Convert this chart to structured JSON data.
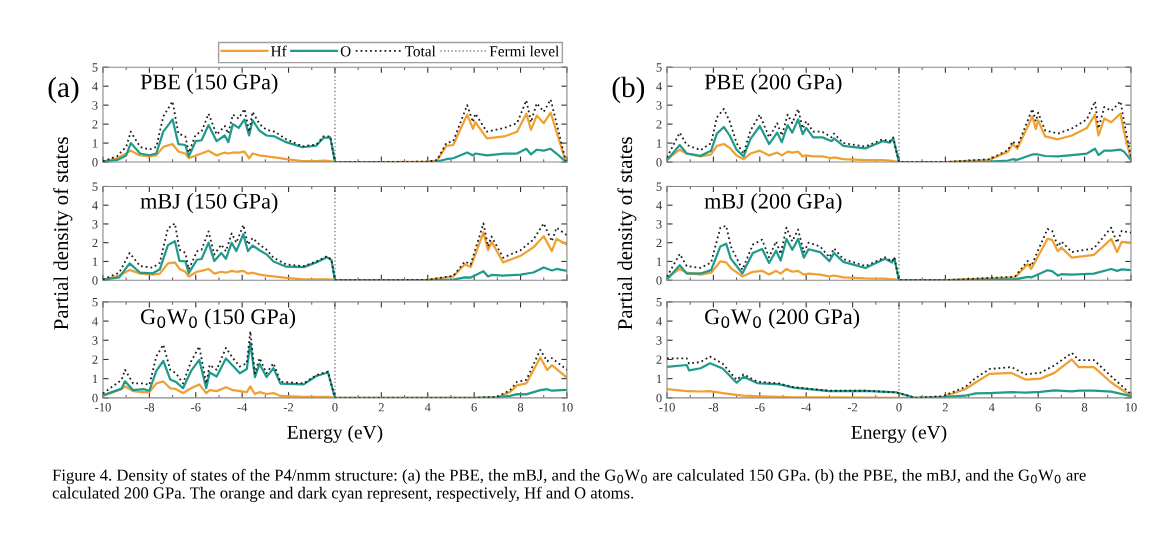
{
  "chart_data": [
    {
      "type": "line",
      "title": "PBE (150 GPa)",
      "xlim": [
        -10,
        10
      ],
      "ylim": [
        0,
        5
      ],
      "xticks": [
        -10,
        -8,
        -6,
        -4,
        -2,
        0,
        2,
        4,
        6,
        8,
        10
      ],
      "yticks": [
        0,
        1,
        2,
        3,
        4,
        5
      ],
      "tick_labels": "y",
      "legend": "top right",
      "annotations": [
        "(a)",
        "Figure 4. Density of states of the P4/nmm structure: (a) the PBE, the mBJ, and the G$_{0}$W$_{0}$ are calculated 150 GPa. (b) the PBE, the mBJ, and the G$_{0}$W$_{0}$ are calculated 200 GPa. The orange and dark cyan represent, respectively, Hf and O atoms."
      ],
      "ref_lines": [
        {
          "axis": "x",
          "value": 0,
          "label": "Fermi level",
          "color": "#808080",
          "line_style": "dotted"
        }
      ],
      "x": [
        -10,
        -9.4,
        -9,
        -8.8,
        -8.4,
        -8,
        -7.7,
        -7.4,
        -7,
        -6.75,
        -6.45,
        -6.3,
        -6,
        -5.75,
        -5.45,
        -5.1,
        -4.75,
        -4.6,
        -4.4,
        -4.15,
        -3.9,
        -3.7,
        -3.55,
        -3.25,
        -2.95,
        -2.6,
        -2.1,
        -1.4,
        -0.8,
        -0.5,
        -0.2,
        0,
        2,
        4,
        4.4,
        4.8,
        5.1,
        5.7,
        5.95,
        6.05,
        6.55,
        7.3,
        7.85,
        8.25,
        8.45,
        8.7,
        9,
        9.3,
        9.55,
        9.95
      ],
      "series": [
        {
          "name": "Hf",
          "color": "#f0a030",
          "values": [
            0.02,
            0.2,
            0.45,
            0.6,
            0.35,
            0.3,
            0.35,
            0.8,
            0.95,
            0.55,
            0.45,
            0.2,
            0.35,
            0.45,
            0.6,
            0.35,
            0.5,
            0.45,
            0.5,
            0.5,
            0.55,
            0.2,
            0.45,
            0.35,
            0.3,
            0.25,
            0.15,
            0.05,
            0.05,
            0.08,
            0.05,
            0,
            0,
            0.02,
            0.08,
            0.85,
            0.9,
            2.5,
            1.75,
            2.1,
            1.25,
            1.35,
            1.6,
            2.55,
            1.7,
            2.45,
            2.05,
            2.6,
            1.6,
            0.03
          ]
        },
        {
          "name": "O",
          "color": "#1f9a8c",
          "values": [
            0.03,
            0.1,
            0.35,
            1.0,
            0.45,
            0.36,
            0.45,
            1.6,
            2.25,
            0.95,
            0.9,
            0.3,
            1.1,
            1.15,
            1.95,
            1.1,
            1.4,
            1.05,
            2.0,
            1.8,
            2.25,
            1.4,
            2.2,
            1.65,
            1.4,
            1.35,
            1.05,
            0.78,
            0.87,
            1.27,
            1.3,
            0,
            0,
            0,
            0.02,
            0.15,
            0.2,
            0.5,
            0.35,
            0.45,
            0.35,
            0.45,
            0.45,
            0.7,
            0.4,
            0.65,
            0.6,
            0.7,
            0.45,
            0.02
          ]
        },
        {
          "name": "Total",
          "color": "#202020",
          "line_style": "dotted",
          "values": [
            0.05,
            0.3,
            0.8,
            1.6,
            0.8,
            0.66,
            0.8,
            2.4,
            3.2,
            1.5,
            1.35,
            0.5,
            1.45,
            1.6,
            2.55,
            1.45,
            1.9,
            1.5,
            2.5,
            2.3,
            2.8,
            1.6,
            2.65,
            2.0,
            1.7,
            1.6,
            1.2,
            0.83,
            0.92,
            1.35,
            1.35,
            0,
            0,
            0.02,
            0.1,
            1.0,
            1.1,
            3.0,
            2.1,
            2.55,
            1.6,
            1.8,
            2.05,
            3.25,
            2.1,
            3.1,
            2.65,
            3.3,
            2.05,
            0.05
          ]
        }
      ]
    },
    {
      "type": "line",
      "title": "PBE (200 GPa)",
      "xlim": [
        -10,
        10
      ],
      "ylim": [
        0,
        5
      ],
      "xticks": [
        -10,
        -8,
        -6,
        -4,
        -2,
        0,
        2,
        4,
        6,
        8,
        10
      ],
      "yticks": [
        0,
        1,
        2,
        3,
        4,
        5
      ],
      "tick_labels": "y",
      "annotations": [
        "(b)"
      ],
      "ref_lines": [
        {
          "axis": "x",
          "value": 0,
          "color": "#808080",
          "line_style": "dotted"
        }
      ],
      "x": [
        -10,
        -9.45,
        -9.15,
        -8.55,
        -8.1,
        -7.85,
        -7.55,
        -7.3,
        -7,
        -6.7,
        -6.4,
        -6,
        -5.6,
        -5.25,
        -5.05,
        -4.8,
        -4.6,
        -4.35,
        -4.15,
        -4,
        -3.7,
        -3.3,
        -2.9,
        -2.8,
        -2.4,
        -1.45,
        -0.7,
        -0.4,
        -0.25,
        0,
        2,
        3.9,
        4.7,
        4.9,
        5.1,
        5.75,
        5.9,
        6,
        6.3,
        6.85,
        7.45,
        8.1,
        8.45,
        8.6,
        8.85,
        9.15,
        9.55,
        9.7,
        10
      ],
      "series": [
        {
          "color": "#f0a030",
          "values": [
            0.15,
            0.65,
            0.45,
            0.3,
            0.4,
            0.85,
            0.95,
            0.75,
            0.35,
            0.15,
            0.45,
            0.6,
            0.35,
            0.5,
            0.35,
            0.55,
            0.5,
            0.55,
            0.3,
            0.35,
            0.3,
            0.3,
            0.2,
            0.25,
            0.15,
            0.1,
            0.1,
            0.08,
            0.05,
            0,
            0,
            0.12,
            0.55,
            0.95,
            0.7,
            2.4,
            1.75,
            2.2,
            1.35,
            1.2,
            1.4,
            1.8,
            2.5,
            1.4,
            2.3,
            2.1,
            2.55,
            1.6,
            0.15
          ]
        },
        {
          "color": "#1f9a8c",
          "values": [
            0.1,
            0.9,
            0.45,
            0.33,
            0.6,
            1.5,
            1.85,
            1.4,
            0.65,
            0.29,
            1.22,
            1.9,
            0.95,
            1.55,
            1.05,
            1.95,
            1.55,
            2.25,
            1.47,
            1.8,
            1.3,
            1.3,
            1.1,
            1.25,
            0.85,
            0.72,
            1.1,
            1.02,
            1.25,
            0,
            0,
            0.03,
            0.08,
            0.15,
            0.12,
            0.4,
            0.4,
            0.4,
            0.32,
            0.3,
            0.37,
            0.45,
            0.7,
            0.37,
            0.6,
            0.6,
            0.65,
            0.55,
            0.1
          ]
        },
        {
          "color": "#202020",
          "line_style": "dotted",
          "values": [
            0.25,
            1.55,
            0.9,
            0.63,
            1.0,
            2.35,
            2.8,
            2.15,
            1.0,
            0.44,
            1.67,
            2.5,
            1.3,
            2.05,
            1.4,
            2.5,
            2.05,
            2.8,
            1.77,
            2.15,
            1.6,
            1.6,
            1.3,
            1.5,
            1.0,
            0.82,
            1.2,
            1.1,
            1.3,
            0,
            0,
            0.15,
            0.63,
            1.1,
            0.82,
            2.8,
            2.15,
            2.6,
            1.67,
            1.5,
            1.77,
            2.25,
            3.2,
            1.77,
            2.9,
            2.7,
            3.2,
            2.15,
            0.25
          ]
        }
      ]
    },
    {
      "type": "line",
      "title": "mBJ (150 GPa)",
      "ylabel": "Partial density of states",
      "xlim": [
        -10,
        10
      ],
      "ylim": [
        0,
        5
      ],
      "xticks": [
        -10,
        -8,
        -6,
        -4,
        -2,
        0,
        2,
        4,
        6,
        8,
        10
      ],
      "yticks": [
        0,
        1,
        2,
        3,
        4,
        5
      ],
      "tick_labels": "y",
      "ref_lines": [
        {
          "axis": "x",
          "value": 0,
          "color": "#808080",
          "line_style": "dotted"
        }
      ],
      "x": [
        -10,
        -9.3,
        -8.85,
        -8.4,
        -7.85,
        -7.55,
        -7.2,
        -6.9,
        -6.7,
        -6.45,
        -6.3,
        -5.95,
        -5.75,
        -5.45,
        -5.2,
        -4.9,
        -4.7,
        -4.45,
        -4.25,
        -3.95,
        -3.75,
        -3.55,
        -3.25,
        -2.95,
        -2.65,
        -2.1,
        -1.35,
        -0.8,
        -0.35,
        -0.15,
        0,
        2,
        4,
        5.1,
        5.6,
        5.85,
        6.4,
        6.6,
        6.75,
        7.25,
        8,
        8.55,
        9,
        9.35,
        9.55,
        10
      ],
      "series": [
        {
          "color": "#f0a030",
          "values": [
            0.02,
            0.25,
            0.55,
            0.35,
            0.3,
            0.35,
            0.9,
            0.95,
            0.6,
            0.45,
            0.2,
            0.45,
            0.5,
            0.6,
            0.35,
            0.45,
            0.4,
            0.5,
            0.45,
            0.5,
            0.35,
            0.4,
            0.3,
            0.25,
            0.2,
            0.12,
            0.05,
            0.05,
            0.05,
            0.03,
            0,
            0,
            0.02,
            0.2,
            0.85,
            0.7,
            2.55,
            1.6,
            2.05,
            0.95,
            1.3,
            1.75,
            2.35,
            1.55,
            2.2,
            1.9
          ]
        },
        {
          "color": "#1f9a8c",
          "values": [
            0.03,
            0.15,
            0.9,
            0.4,
            0.37,
            0.58,
            1.87,
            2.08,
            1.03,
            1.01,
            0.38,
            1.09,
            1.13,
            2.0,
            1.02,
            1.45,
            1.14,
            2.0,
            1.55,
            2.45,
            1.55,
            1.85,
            1.6,
            1.38,
            1.0,
            0.72,
            0.7,
            0.95,
            1.23,
            1.07,
            0,
            0,
            0,
            0.03,
            0.15,
            0.14,
            0.48,
            0.2,
            0.28,
            0.25,
            0.3,
            0.41,
            0.68,
            0.52,
            0.6,
            0.5
          ]
        },
        {
          "color": "#202020",
          "line_style": "dotted",
          "values": [
            0.05,
            0.4,
            1.45,
            0.75,
            0.67,
            0.93,
            2.77,
            3.03,
            1.63,
            1.46,
            0.58,
            1.54,
            1.63,
            2.6,
            1.37,
            1.9,
            1.54,
            2.5,
            2.0,
            2.95,
            1.9,
            2.25,
            1.9,
            1.63,
            1.2,
            0.84,
            0.75,
            1.0,
            1.28,
            1.1,
            0,
            0,
            0.02,
            0.23,
            1.0,
            0.84,
            3.03,
            1.8,
            2.33,
            1.2,
            1.6,
            2.16,
            3.03,
            2.07,
            2.8,
            2.4
          ]
        }
      ]
    },
    {
      "type": "line",
      "title": "mBJ (200 GPa)",
      "ylabel": "Partial density of states",
      "xlim": [
        -10,
        10
      ],
      "ylim": [
        0,
        5
      ],
      "xticks": [
        -10,
        -8,
        -6,
        -4,
        -2,
        0,
        2,
        4,
        6,
        8,
        10
      ],
      "yticks": [
        0,
        1,
        2,
        3,
        4,
        5
      ],
      "tick_labels": "y",
      "ref_lines": [
        {
          "axis": "x",
          "value": 0,
          "color": "#808080",
          "line_style": "dotted"
        }
      ],
      "x": [
        -10,
        -9.45,
        -9.15,
        -8.55,
        -8.1,
        -7.7,
        -7.45,
        -7.25,
        -6.75,
        -6.3,
        -5.9,
        -5.6,
        -5.3,
        -5.1,
        -4.85,
        -4.6,
        -4.35,
        -4.1,
        -3.9,
        -3.4,
        -3,
        -2.8,
        -2.4,
        -1.45,
        -0.6,
        -0.3,
        -0.2,
        0,
        2,
        5,
        5.55,
        5.7,
        6.4,
        6.6,
        6.85,
        7,
        7.45,
        8.4,
        9.15,
        9.4,
        9.6,
        10
      ],
      "series": [
        {
          "color": "#f0a030",
          "values": [
            0.15,
            0.6,
            0.4,
            0.3,
            0.4,
            1.0,
            0.95,
            0.65,
            0.2,
            0.45,
            0.5,
            0.3,
            0.5,
            0.35,
            0.6,
            0.45,
            0.5,
            0.3,
            0.35,
            0.3,
            0.2,
            0.25,
            0.15,
            0.1,
            0.08,
            0.05,
            0.05,
            0,
            0,
            0.15,
            0.85,
            0.6,
            2.2,
            2.15,
            1.55,
            1.75,
            1.2,
            1.35,
            2.2,
            1.5,
            2.05,
            2.0
          ]
        },
        {
          "color": "#1f9a8c",
          "values": [
            0.04,
            0.8,
            0.35,
            0.36,
            0.54,
            1.8,
            1.95,
            1.15,
            0.36,
            1.45,
            1.66,
            0.92,
            1.57,
            1.05,
            2.2,
            1.62,
            2.2,
            1.2,
            1.65,
            1.5,
            1.02,
            1.45,
            0.98,
            0.65,
            1.14,
            0.95,
            1.17,
            0,
            0,
            0.04,
            0.18,
            0.15,
            0.53,
            0.48,
            0.25,
            0.32,
            0.3,
            0.35,
            0.6,
            0.5,
            0.58,
            0.54
          ]
        },
        {
          "color": "#202020",
          "line_style": "dotted",
          "values": [
            0.19,
            1.4,
            0.75,
            0.66,
            0.94,
            2.8,
            2.9,
            1.8,
            0.56,
            1.9,
            2.16,
            1.22,
            2.07,
            1.4,
            2.8,
            2.07,
            2.7,
            1.5,
            2.0,
            1.8,
            1.22,
            1.7,
            1.13,
            0.75,
            1.22,
            1.0,
            1.22,
            0,
            0,
            0.19,
            1.03,
            0.75,
            2.73,
            2.63,
            1.8,
            2.07,
            1.5,
            1.7,
            2.8,
            2.0,
            2.63,
            2.54
          ]
        }
      ]
    },
    {
      "type": "line",
      "title": "G$_{0}$W$_{0}$ (150 GPa)",
      "xlabel": "Energy (eV)",
      "xlim": [
        -10,
        10
      ],
      "ylim": [
        0,
        5
      ],
      "xticks": [
        -10,
        -8,
        -6,
        -4,
        -2,
        0,
        2,
        4,
        6,
        8,
        10
      ],
      "yticks": [
        0,
        1,
        2,
        3,
        4,
        5
      ],
      "ref_lines": [
        {
          "axis": "x",
          "value": 0,
          "color": "#808080",
          "line_style": "dotted"
        }
      ],
      "x": [
        -10,
        -9.2,
        -9.05,
        -8.7,
        -8.25,
        -8,
        -7.7,
        -7.4,
        -7.1,
        -6.85,
        -6.55,
        -6.2,
        -5.85,
        -5.55,
        -5.4,
        -5.1,
        -4.7,
        -4.4,
        -4.1,
        -3.8,
        -3.65,
        -3.45,
        -3.25,
        -2.95,
        -2.65,
        -2.35,
        -1.35,
        -0.8,
        -0.3,
        0,
        2,
        4,
        6,
        7,
        7.55,
        7.85,
        8.25,
        8.85,
        9.15,
        9.35,
        10
      ],
      "series": [
        {
          "color": "#f0a030",
          "values": [
            0.1,
            0.45,
            0.6,
            0.35,
            0.3,
            0.3,
            0.75,
            0.85,
            0.5,
            0.45,
            0.25,
            0.5,
            0.7,
            0.25,
            0.4,
            0.35,
            0.55,
            0.4,
            0.35,
            0.3,
            0.6,
            0.2,
            0.3,
            0.2,
            0.25,
            0.1,
            0.05,
            0.05,
            0.05,
            0,
            0,
            0,
            0,
            0.03,
            0.3,
            0.65,
            0.75,
            2.1,
            1.45,
            1.7,
            1.05
          ]
        },
        {
          "color": "#1f9a8c",
          "values": [
            0.13,
            0.48,
            0.86,
            0.4,
            0.45,
            0.37,
            1.41,
            1.92,
            0.96,
            0.83,
            0.5,
            1.4,
            1.98,
            0.5,
            1.32,
            1.11,
            2.05,
            1.67,
            1.28,
            1.5,
            2.87,
            1.08,
            1.77,
            1.08,
            1.55,
            0.74,
            0.7,
            1.14,
            1.32,
            0,
            0,
            0,
            0,
            0.02,
            0.1,
            0.19,
            0.18,
            0.4,
            0.45,
            0.37,
            0.41
          ]
        },
        {
          "color": "#202020",
          "line_style": "dotted",
          "values": [
            0.23,
            0.93,
            1.46,
            0.75,
            0.75,
            0.67,
            2.16,
            2.77,
            1.46,
            1.28,
            0.75,
            1.9,
            2.68,
            0.75,
            1.72,
            1.46,
            2.6,
            2.07,
            1.63,
            1.8,
            3.47,
            1.28,
            2.07,
            1.28,
            1.8,
            0.84,
            0.75,
            1.19,
            1.37,
            0,
            0,
            0,
            0,
            0.05,
            0.4,
            0.84,
            0.93,
            2.5,
            1.9,
            2.07,
            1.46
          ]
        }
      ]
    },
    {
      "type": "line",
      "title": "G$_{0}$W$_{0}$ (200 GPa)",
      "xlabel": "Energy (eV)",
      "xlim": [
        -10,
        10
      ],
      "ylim": [
        0,
        5
      ],
      "xticks": [
        -10,
        -8,
        -6,
        -4,
        -2,
        0,
        2,
        4,
        6,
        8,
        10
      ],
      "yticks": [
        0,
        1,
        2,
        3,
        4,
        5
      ],
      "ref_lines": [
        {
          "axis": "x",
          "value": 0,
          "color": "#808080",
          "line_style": "dotted"
        }
      ],
      "x": [
        -10,
        -9.15,
        -9.05,
        -8.55,
        -8.15,
        -7.6,
        -7,
        -6.7,
        -6.4,
        -6.1,
        -5.15,
        -4.55,
        -3,
        -1.45,
        -0.1,
        0.7,
        1.9,
        2.85,
        3.3,
        3.9,
        4.85,
        5.45,
        6.1,
        6.7,
        7.45,
        7.75,
        8.4,
        9.15,
        10
      ],
      "series": [
        {
          "color": "#f0a030",
          "values": [
            0.45,
            0.35,
            0.35,
            0.33,
            0.35,
            0.25,
            0.15,
            0.12,
            0.1,
            0.08,
            0.05,
            0.03,
            0.02,
            0.01,
            0,
            0,
            0.05,
            0.45,
            0.8,
            1.25,
            1.3,
            0.95,
            1.0,
            1.3,
            2.0,
            1.6,
            1.6,
            0.8,
            0.1
          ]
        },
        {
          "color": "#1f9a8c",
          "values": [
            1.61,
            1.71,
            1.43,
            1.54,
            1.8,
            1.53,
            0.79,
            1.1,
            0.93,
            0.76,
            0.7,
            0.53,
            0.35,
            0.36,
            0.28,
            0,
            0.04,
            0.11,
            0.23,
            0.25,
            0.3,
            0.27,
            0.31,
            0.39,
            0.34,
            0.37,
            0.37,
            0.32,
            0.09
          ]
        },
        {
          "color": "#202020",
          "line_style": "dotted",
          "values": [
            2.06,
            2.06,
            1.78,
            1.87,
            2.15,
            1.78,
            0.94,
            1.22,
            1.03,
            0.84,
            0.75,
            0.56,
            0.37,
            0.37,
            0.28,
            0,
            0.09,
            0.56,
            1.03,
            1.5,
            1.6,
            1.22,
            1.31,
            1.69,
            2.34,
            1.97,
            1.97,
            1.12,
            0.19
          ]
        }
      ]
    }
  ]
}
